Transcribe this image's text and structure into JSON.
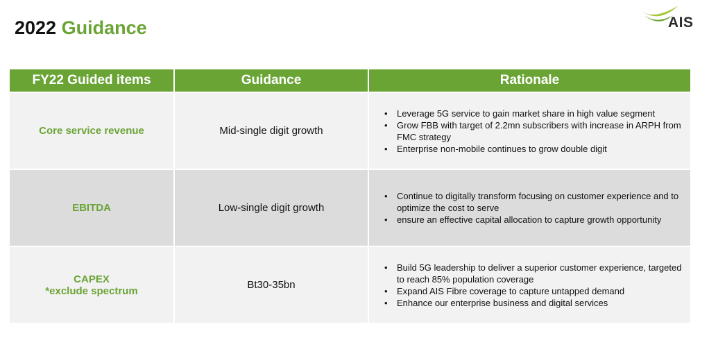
{
  "header": {
    "title_year": "2022",
    "title_word": "Guidance",
    "logo_text": "AIS"
  },
  "colors": {
    "accent": "#6aa435",
    "row_light": "#f2f2f2",
    "row_dark": "#dcdcdc"
  },
  "table": {
    "headers": [
      "FY22 Guided items",
      "Guidance",
      "Rationale"
    ],
    "rows": [
      {
        "item_lines": [
          "Core service revenue"
        ],
        "guidance": "Mid-single digit growth",
        "rationale": [
          "Leverage 5G service to gain market share in high value segment",
          "Grow FBB with target of 2.2mn subscribers with increase in ARPH from FMC strategy",
          "Enterprise non-mobile continues to grow double digit"
        ]
      },
      {
        "item_lines": [
          "EBITDA"
        ],
        "guidance": "Low-single digit growth",
        "rationale": [
          "Continue to digitally transform focusing on customer experience and to optimize the cost to serve",
          "ensure an effective capital allocation to capture growth opportunity"
        ]
      },
      {
        "item_lines": [
          "CAPEX",
          "*exclude spectrum"
        ],
        "guidance": "Bt30-35bn",
        "rationale": [
          "Build 5G leadership to deliver a superior customer experience, targeted to reach 85% population coverage",
          "Expand AIS Fibre coverage to capture untapped demand",
          "Enhance our enterprise business and digital services"
        ]
      }
    ]
  }
}
